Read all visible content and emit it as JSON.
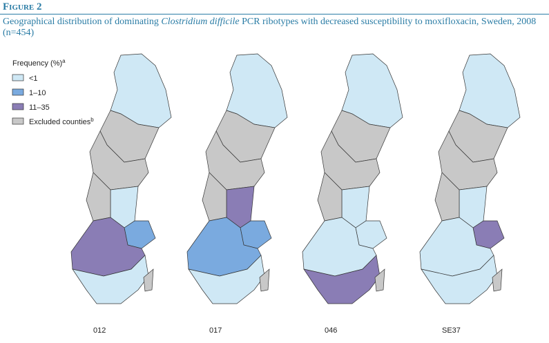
{
  "figure": {
    "label": "Figure 2",
    "title": {
      "before": "Geographical distribution of dominating ",
      "italic": "Clostridium difficile",
      "after": " PCR ribotypes with decreased susceptibility to moxifloxacin, Sweden, 2008 (n=454)"
    }
  },
  "legend": {
    "title": "Frequency (%)",
    "title_note": "a",
    "items": [
      {
        "label": "<1"
      },
      {
        "label": "1–10"
      },
      {
        "label": "11–35"
      },
      {
        "label": "Excluded counties",
        "note": "b"
      }
    ]
  },
  "maps": [
    {
      "label": "012"
    },
    {
      "label": "017"
    },
    {
      "label": "046"
    },
    {
      "label": "SE37"
    }
  ]
}
